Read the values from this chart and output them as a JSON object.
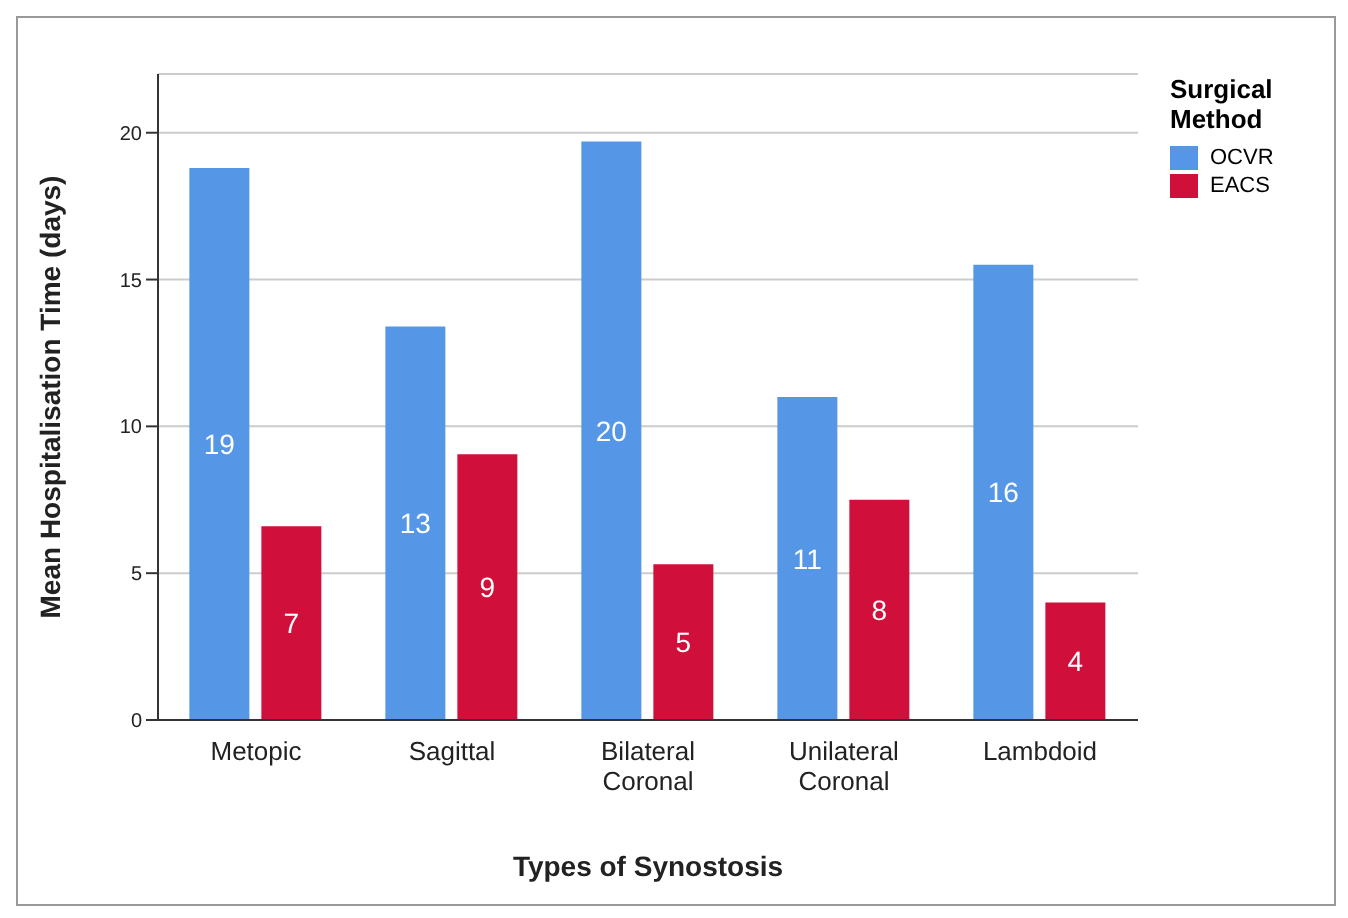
{
  "chart_data": {
    "type": "bar",
    "xlabel": "Types of Synostosis",
    "ylabel": "Mean Hospitalisation Time (days)",
    "legend_title": "Surgical Method",
    "categories": [
      "Metopic",
      "Sagittal",
      "Bilateral Coronal",
      "Unilateral Coronal",
      "Lambdoid"
    ],
    "series": [
      {
        "name": "OCVR",
        "color": "#5596e6",
        "values": [
          18.8,
          13.4,
          19.7,
          11.0,
          15.5
        ],
        "value_labels": [
          "19",
          "13",
          "20",
          "11",
          "16"
        ]
      },
      {
        "name": "EACS",
        "color": "#d0103a",
        "values": [
          6.6,
          9.05,
          5.3,
          7.5,
          4.0
        ],
        "value_labels": [
          "7",
          "9",
          "5",
          "8",
          "4"
        ]
      }
    ],
    "ylim": [
      0,
      22
    ],
    "yticks": [
      0,
      5,
      10,
      15,
      20
    ],
    "grid": "y",
    "legend": "top right"
  }
}
